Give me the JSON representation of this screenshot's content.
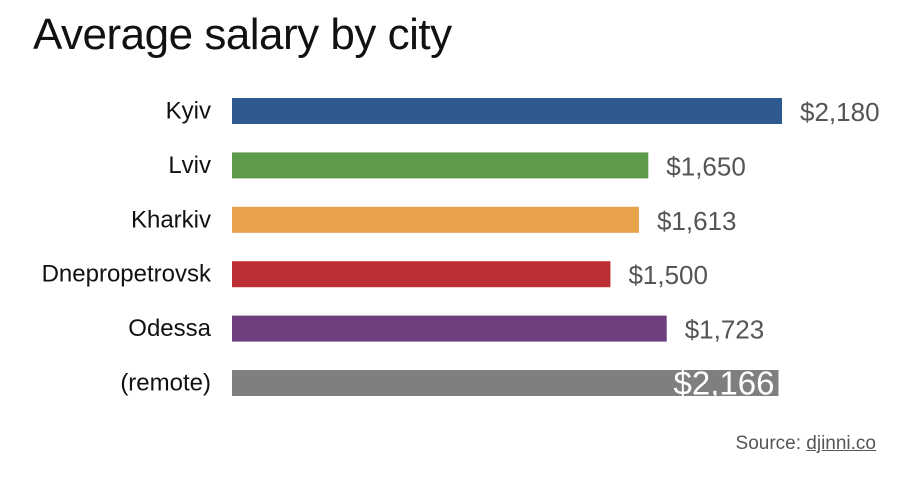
{
  "chart_data": {
    "type": "bar",
    "orientation": "horizontal",
    "title": "Average salary by city",
    "xlabel": "",
    "ylabel": "",
    "value_prefix": "$",
    "categories": [
      "Kyiv",
      "Lviv",
      "Kharkiv",
      "Dnepropetrovsk",
      "Odessa",
      "(remote)"
    ],
    "values": [
      2180,
      1650,
      1613,
      1500,
      1723,
      2166
    ],
    "value_labels": [
      "$2,180",
      "$1,650",
      "$1,613",
      "$1,500",
      "$1,723",
      "$2,166"
    ],
    "colors": [
      "#2f5a8e",
      "#5f9b4c",
      "#e8a24a",
      "#be2f34",
      "#6e3e7d",
      "#7f7f7f"
    ],
    "xlim": [
      0,
      2180
    ],
    "grid": false,
    "legend": "none"
  },
  "source": {
    "prefix": "Source: ",
    "link_text": "djinni.co"
  }
}
